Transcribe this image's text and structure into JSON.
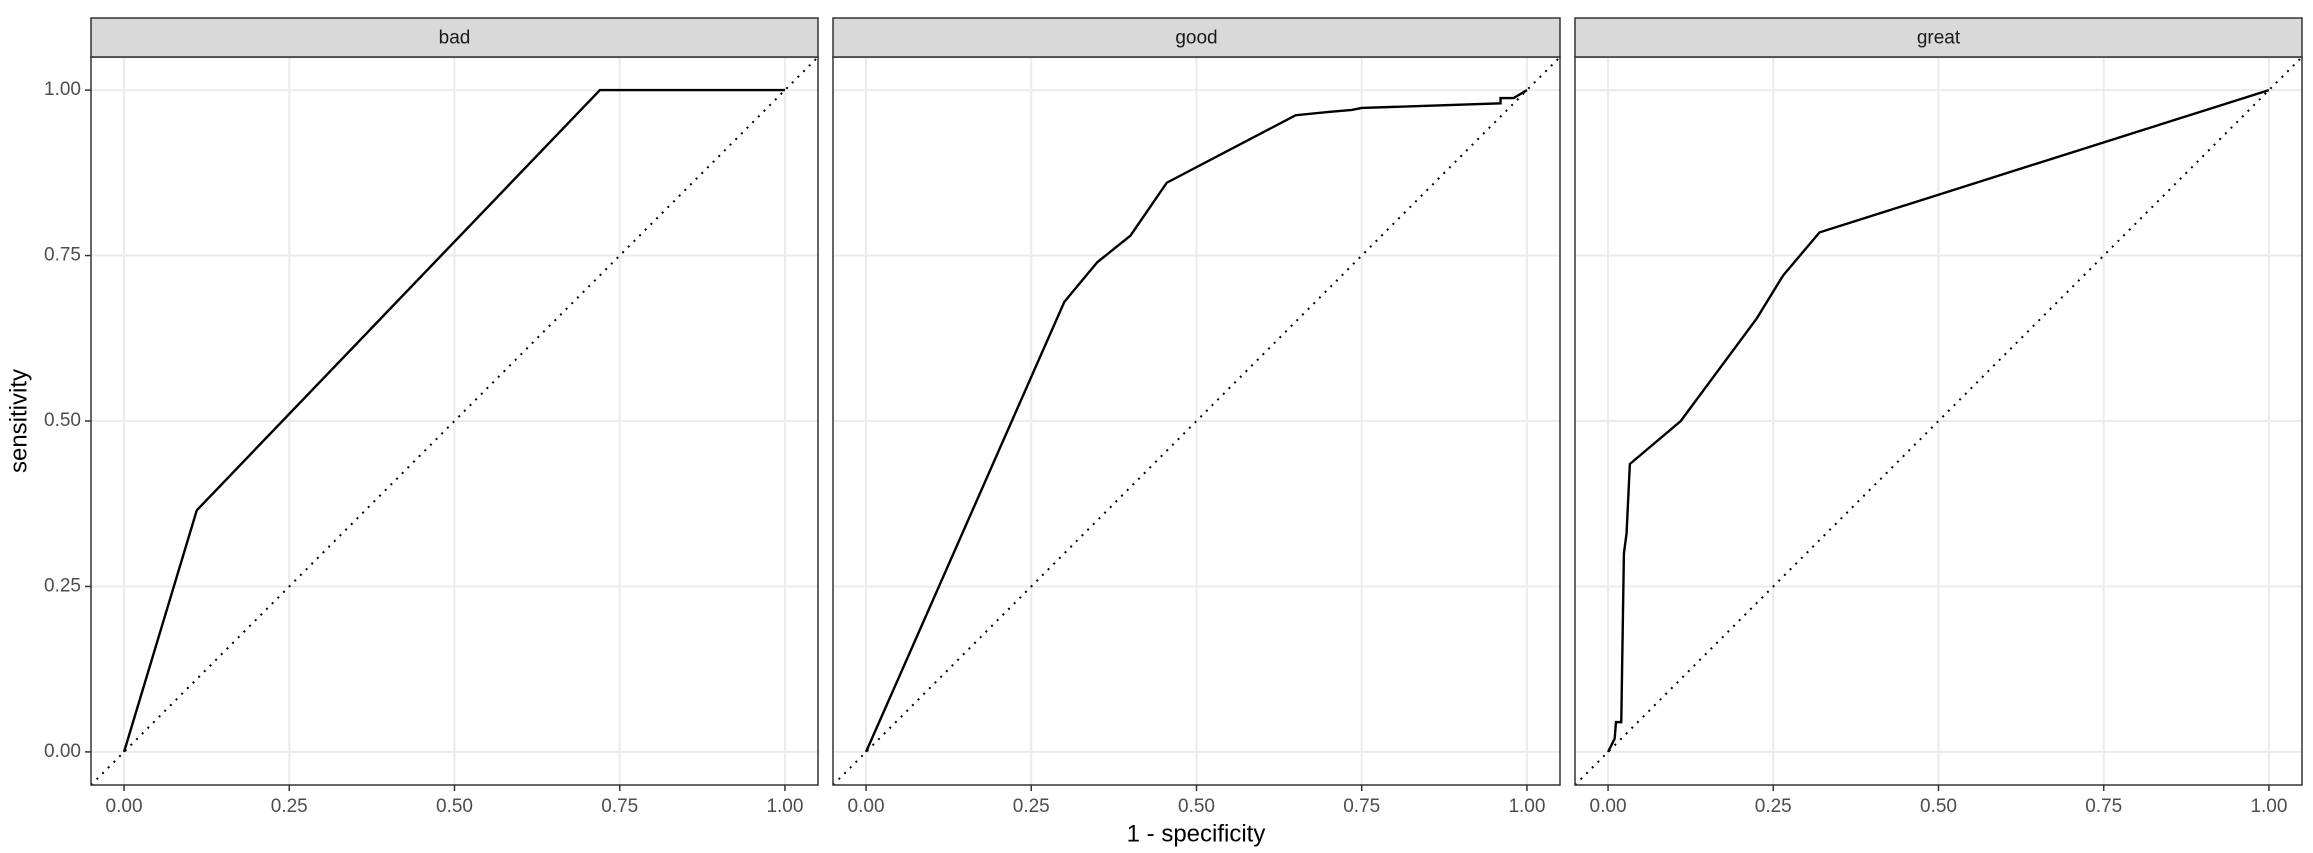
{
  "chart_data": {
    "type": "line",
    "xlabel": "1 - specificity",
    "ylabel": "sensitivity",
    "color": "#000000",
    "grid": true,
    "xlim": [
      -0.05,
      1.05
    ],
    "ylim": [
      -0.05,
      1.05
    ],
    "xticks": [
      {
        "value": 0,
        "label": "0.00"
      },
      {
        "value": 0.25,
        "label": "0.25"
      },
      {
        "value": 0.5,
        "label": "0.50"
      },
      {
        "value": 0.75,
        "label": "0.75"
      },
      {
        "value": 1,
        "label": "1.00"
      }
    ],
    "yticks": [
      {
        "value": 0,
        "label": "0.00"
      },
      {
        "value": 0.25,
        "label": "0.25"
      },
      {
        "value": 0.5,
        "label": "0.50"
      },
      {
        "value": 0.75,
        "label": "0.75"
      },
      {
        "value": 1,
        "label": "1.00"
      }
    ],
    "facets": [
      {
        "title": "bad",
        "x": [
          0,
          0.11,
          0.72,
          1.0
        ],
        "values": [
          0,
          0.365,
          1.0,
          1.0
        ]
      },
      {
        "title": "good",
        "x": [
          0,
          0.3,
          0.35,
          0.4,
          0.455,
          0.65,
          0.7,
          0.735,
          0.75,
          0.96,
          0.96,
          0.98,
          1.0
        ],
        "values": [
          0,
          0.68,
          0.74,
          0.78,
          0.86,
          0.962,
          0.967,
          0.97,
          0.973,
          0.98,
          0.988,
          0.988,
          1.0
        ]
      },
      {
        "title": "great",
        "x": [
          0,
          0.01,
          0.012,
          0.02,
          0.024,
          0.028,
          0.033,
          0.11,
          0.225,
          0.265,
          0.32,
          1.0
        ],
        "values": [
          0,
          0.02,
          0.045,
          0.045,
          0.3,
          0.33,
          0.435,
          0.5,
          0.655,
          0.72,
          0.785,
          1.0
        ]
      }
    ]
  }
}
